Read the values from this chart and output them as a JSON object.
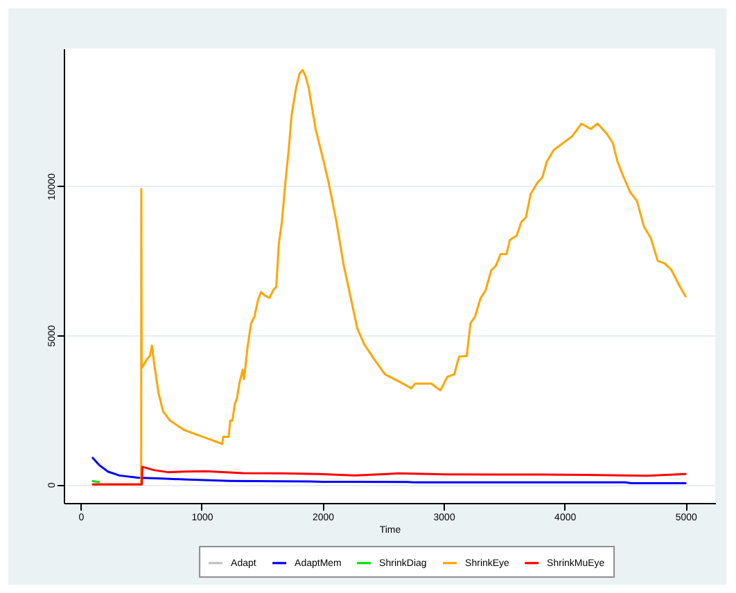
{
  "chart_data": {
    "type": "line",
    "xlabel": "Time",
    "xlim": [
      -140,
      5245
    ],
    "xticks": [
      0,
      1000,
      2000,
      3000,
      4000,
      5000
    ],
    "ylim": [
      -620,
      14610
    ],
    "yticks": [
      0,
      5000,
      10000
    ],
    "grid": "y",
    "legend": "bottom",
    "series": [
      {
        "name": "Adapt",
        "color": "#c0c0c0"
      },
      {
        "name": "AdaptMem",
        "color": "#0000ff",
        "x": [
          100,
          150,
          225,
          320,
          470,
          700,
          850,
          1240,
          1450,
          1900,
          2000,
          2700,
          2750,
          4500,
          4550,
          5000
        ],
        "values": [
          890,
          660,
          430,
          300,
          230,
          190,
          170,
          120,
          110,
          100,
          90,
          80,
          70,
          70,
          40,
          40
        ]
      },
      {
        "name": "ShrinkDiag",
        "color": "#00e000",
        "x": [
          100,
          150
        ],
        "values": [
          110,
          80
        ]
      },
      {
        "name": "ShrinkEye",
        "color": "#ffa500",
        "x": [
          100,
          500,
          501,
          504,
          548,
          571,
          589,
          609,
          643,
          681,
          738,
          853,
          1006,
          1170,
          1178,
          1224,
          1236,
          1254,
          1273,
          1293,
          1311,
          1339,
          1350,
          1380,
          1408,
          1437,
          1465,
          1491,
          1522,
          1560,
          1591,
          1617,
          1637,
          1663,
          1694,
          1721,
          1743,
          1781,
          1809,
          1835,
          1858,
          1884,
          1942,
          1999,
          2045,
          2114,
          2171,
          2228,
          2286,
          2343,
          2420,
          2515,
          2649,
          2733,
          2764,
          2898,
          2973,
          3031,
          3088,
          3127,
          3191,
          3222,
          3260,
          3306,
          3345,
          3394,
          3432,
          3471,
          3520,
          3547,
          3604,
          3643,
          3681,
          3719,
          3776,
          3815,
          3853,
          3910,
          3987,
          4062,
          4139,
          4216,
          4273,
          4349,
          4399,
          4437,
          4483,
          4540,
          4598,
          4655,
          4712,
          4770,
          4827,
          4884,
          4942,
          5000
        ],
        "values": [
          0,
          0,
          9900,
          3900,
          4200,
          4300,
          4650,
          4000,
          3070,
          2450,
          2140,
          1830,
          1600,
          1360,
          1600,
          1600,
          2140,
          2140,
          2680,
          2900,
          3380,
          3840,
          3530,
          4620,
          5400,
          5630,
          6170,
          6450,
          6330,
          6250,
          6510,
          6630,
          8030,
          8800,
          10200,
          11280,
          12370,
          13300,
          13770,
          13890,
          13690,
          13300,
          11910,
          10980,
          10200,
          8800,
          7410,
          6330,
          5240,
          4700,
          4230,
          3690,
          3410,
          3220,
          3380,
          3380,
          3150,
          3610,
          3690,
          4280,
          4310,
          5400,
          5630,
          6250,
          6480,
          7180,
          7330,
          7720,
          7720,
          8190,
          8340,
          8800,
          8960,
          9730,
          10120,
          10280,
          10820,
          11210,
          11440,
          11670,
          12090,
          11910,
          12090,
          11750,
          11440,
          10820,
          10350,
          9810,
          9500,
          8650,
          8260,
          7490,
          7410,
          7180,
          6710,
          6300
        ]
      },
      {
        "name": "ShrinkMuEye",
        "color": "#ff0000",
        "x": [
          100,
          505,
          509,
          606,
          722,
          853,
          1033,
          1343,
          1654,
          1965,
          2275,
          2534,
          2624,
          3012,
          3400,
          3789,
          4177,
          4681,
          5000
        ],
        "values": [
          0,
          0,
          590,
          480,
          410,
          430,
          440,
          380,
          370,
          350,
          300,
          350,
          370,
          340,
          330,
          330,
          320,
          290,
          350
        ]
      }
    ]
  }
}
